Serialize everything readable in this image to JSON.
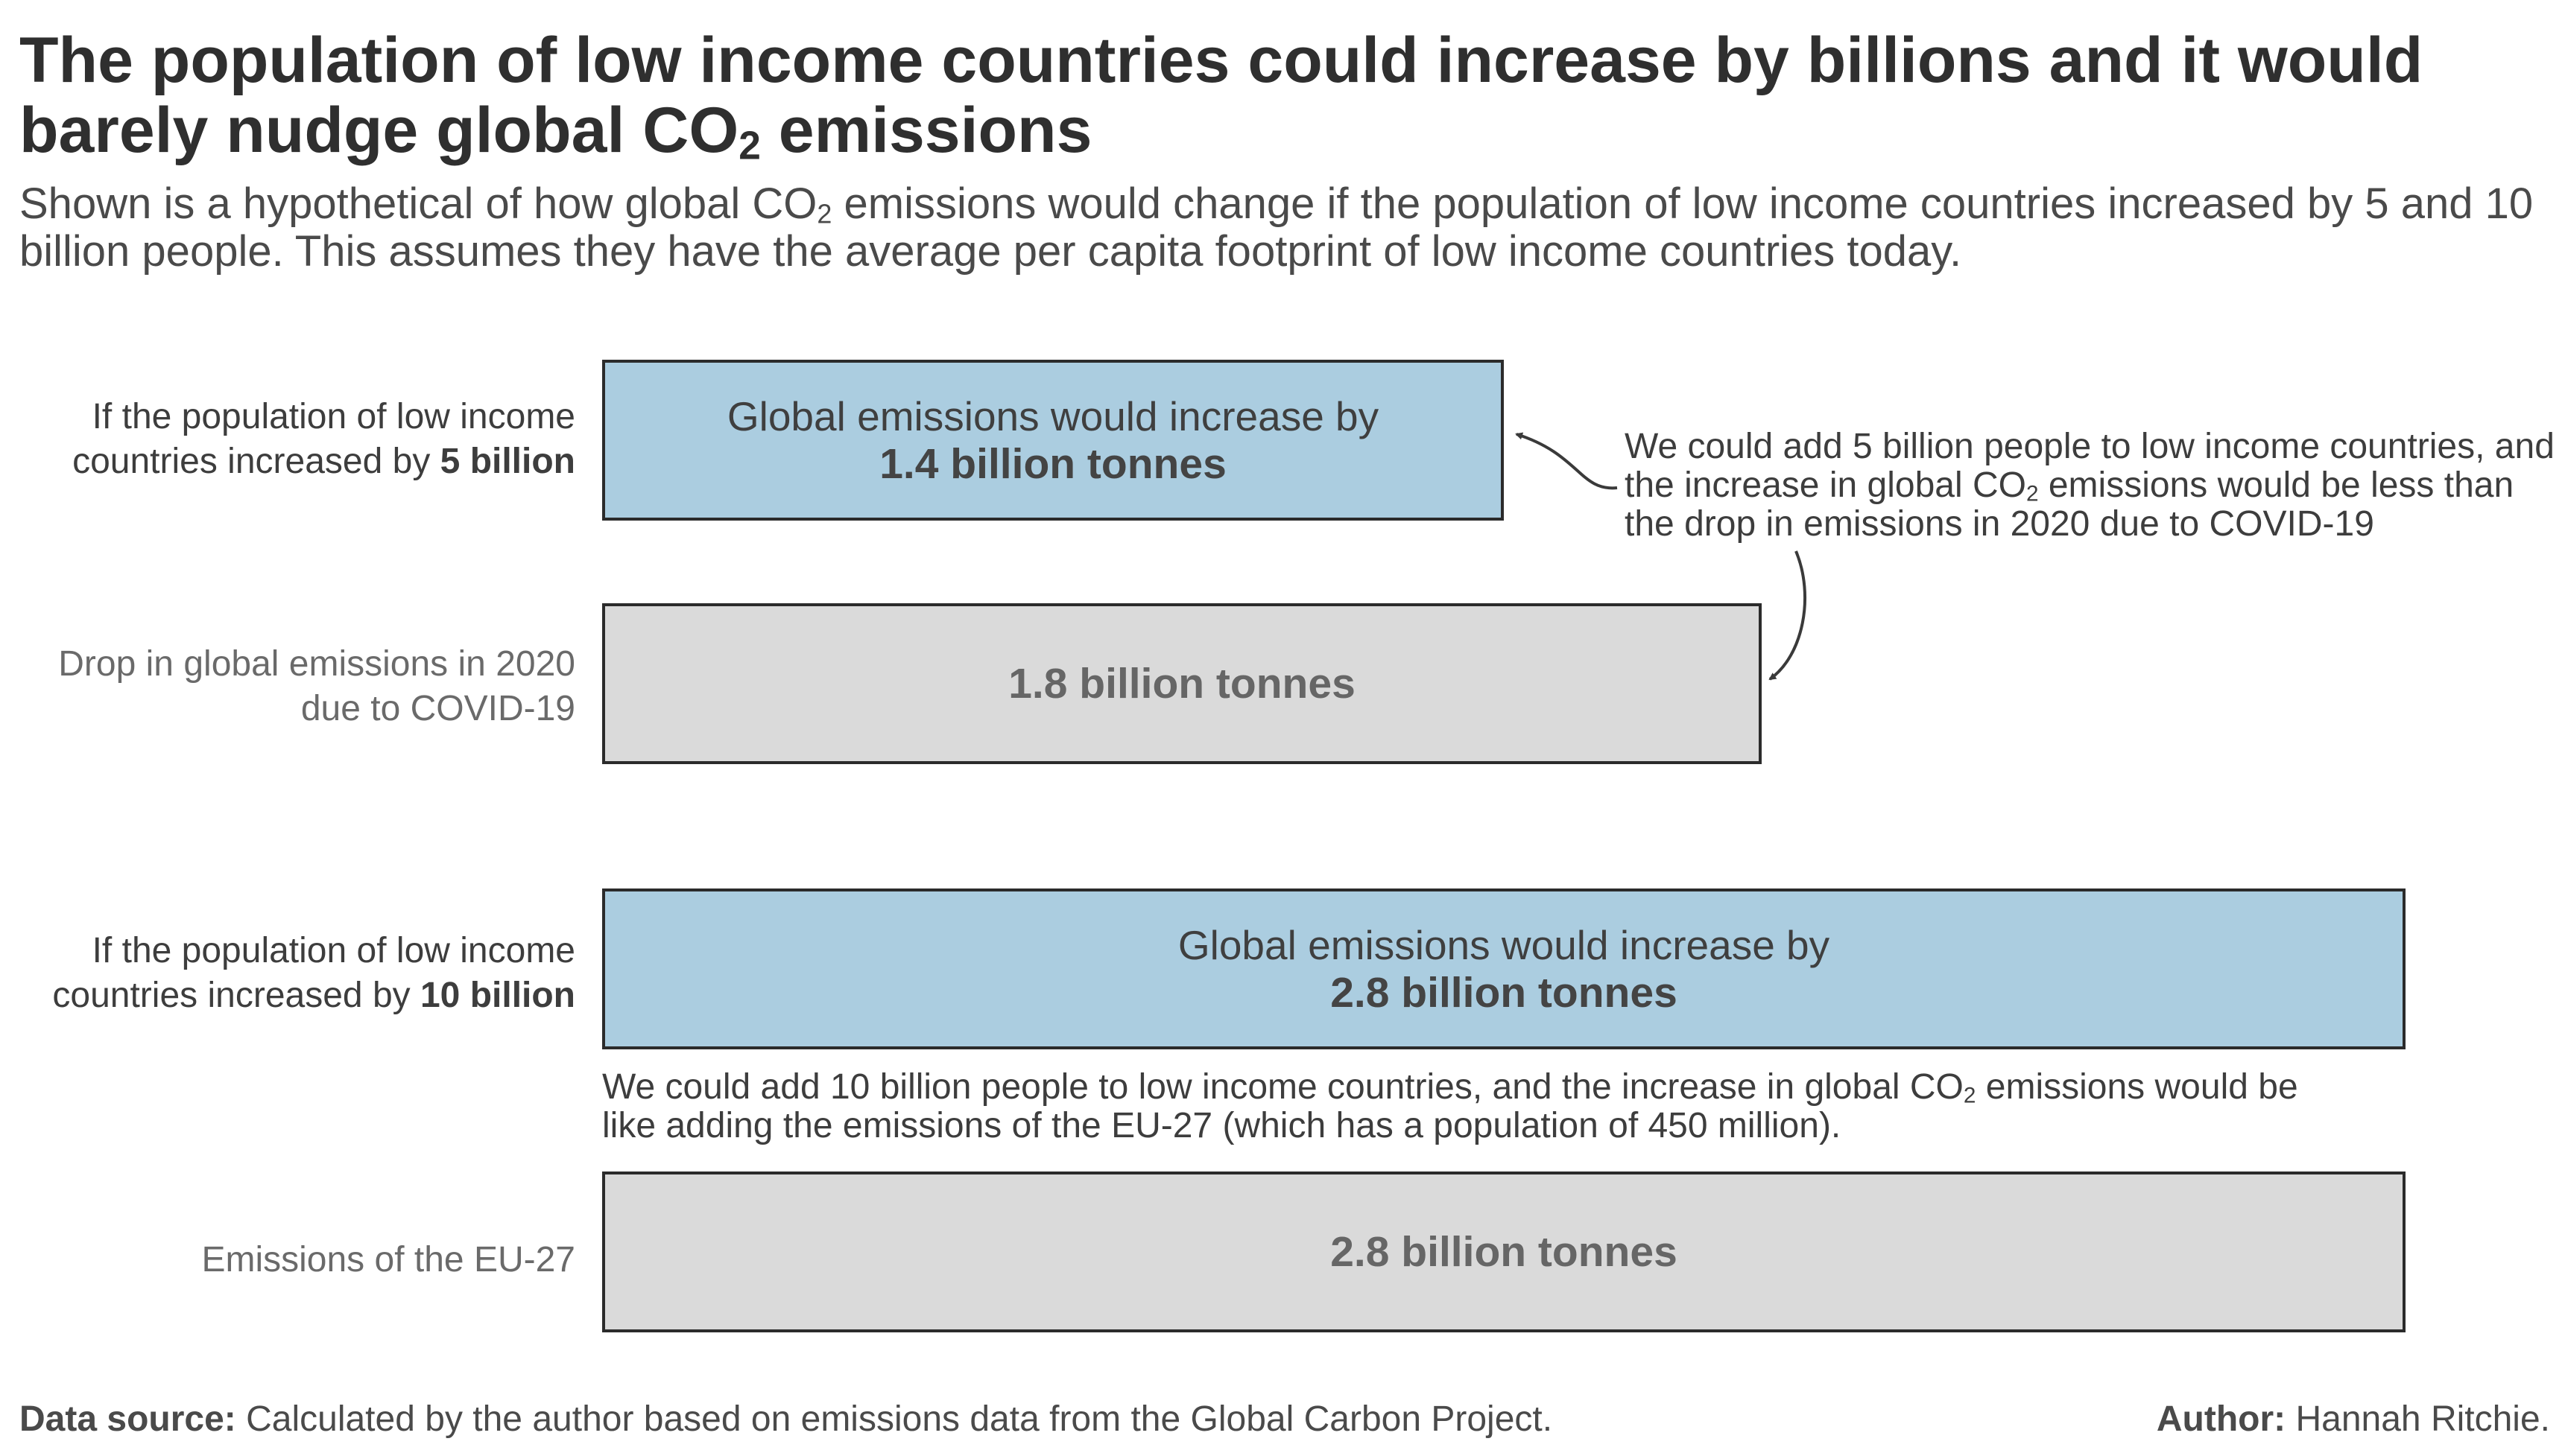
{
  "header": {
    "title_prefix": "The population of low income countries could increase by billions and it would barely nudge global CO",
    "title_sub": "2",
    "title_suffix": " emissions",
    "subtitle_prefix": "Shown is a hypothetical of how global CO",
    "subtitle_sub": "2",
    "subtitle_suffix": " emissions would change if the population of low income countries increased by 5 and 10 billion people. This assumes they have the average per capita footprint of low income countries today."
  },
  "chart_data": {
    "type": "bar",
    "orientation": "horizontal",
    "unit": "billion tonnes",
    "xlim": [
      0,
      2.8
    ],
    "rows": [
      {
        "label_prefix": "If the population of low income countries increased by ",
        "label_bold": "5 billion",
        "bar_line": "Global emissions would increase by",
        "value_text": "1.4 billion tonnes",
        "value": 1.4,
        "color": "#abcde0"
      },
      {
        "label_prefix": "Drop in global emissions in 2020 due to COVID-19",
        "label_bold": "",
        "bar_line": "",
        "value_text": "1.8 billion tonnes",
        "value": 1.8,
        "color": "#dadada"
      },
      {
        "label_prefix": "If the population of low income countries increased by ",
        "label_bold": "10 billion",
        "bar_line": "Global emissions would increase by",
        "value_text": "2.8 billion tonnes",
        "value": 2.8,
        "color": "#abcde0"
      },
      {
        "label_prefix": "Emissions of the EU-27",
        "label_bold": "",
        "bar_line": "",
        "value_text": "2.8 billion tonnes",
        "value": 2.8,
        "color": "#dadada"
      }
    ],
    "annotations": [
      {
        "prefix": "We could add 5 billion people to low income countries, and the increase in global CO",
        "sub": "2",
        "suffix": " emissions would be less than the drop in emissions in 2020 due to COVID-19"
      },
      {
        "prefix": "We could add 10 billion people to low income countries,  and the increase in global CO",
        "sub": "2",
        "suffix": " emissions would be like adding the emissions of the EU-27 (which has a population of 450 million)."
      }
    ]
  },
  "footer": {
    "source_label": "Data source:",
    "source_text": " Calculated by the author based on emissions data from the Global Carbon Project.",
    "author_label": "Author:",
    "author_text": " Hannah Ritchie."
  }
}
